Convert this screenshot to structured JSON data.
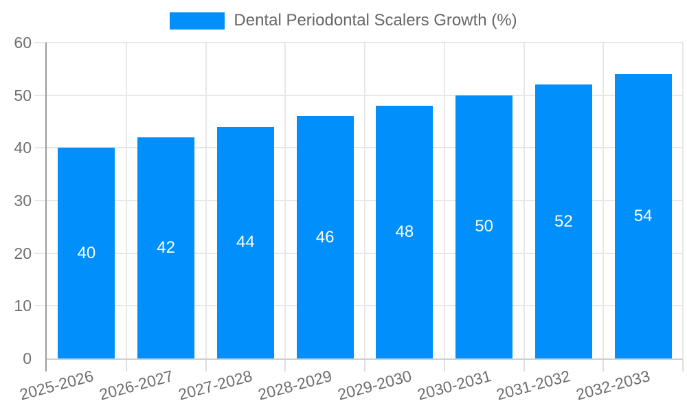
{
  "legend": {
    "label": "Dental Periodontal Scalers Growth (%)"
  },
  "chart_data": {
    "type": "bar",
    "title": "Dental Periodontal Scalers Growth (%)",
    "categories": [
      "2025-2026",
      "2026-2027",
      "2027-2028",
      "2028-2029",
      "2029-2030",
      "2030-2031",
      "2031-2032",
      "2032-2033"
    ],
    "values": [
      40,
      42,
      44,
      46,
      48,
      50,
      52,
      54
    ],
    "xlabel": "",
    "ylabel": "",
    "ylim": [
      0,
      60
    ],
    "ytick_step": 10,
    "ytick_labels": [
      "0",
      "10",
      "20",
      "30",
      "40",
      "50",
      "60"
    ],
    "grid": true,
    "legend_position": "top-center",
    "bar_color": "#008ffb",
    "bar_label_color": "#ffffff",
    "axis_text_color": "#6e6e6e",
    "grid_color": "#e7e7e7",
    "x_label_rotation_deg": -15
  }
}
